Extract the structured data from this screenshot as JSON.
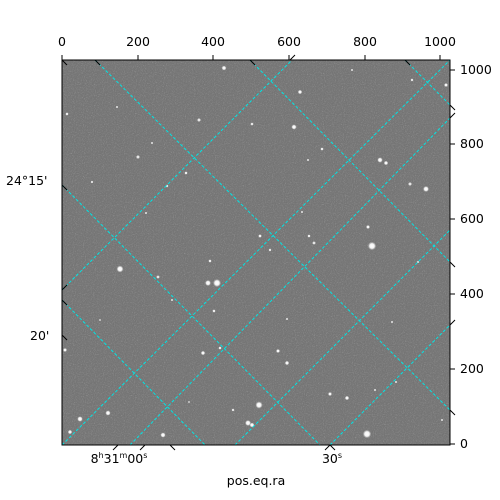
{
  "image": {
    "description_type": "astronomical-cutout",
    "background_color": "#777777",
    "star_color": "#ffffff",
    "grid_color": "#00e5e5",
    "noise": true
  },
  "axes": {
    "xlabel": "pos.eq.ra",
    "top_ticks": [
      "0",
      "200",
      "400",
      "600",
      "800",
      "1000"
    ],
    "right_ticks": [
      "0",
      "200",
      "400",
      "600",
      "800",
      "1000"
    ],
    "left_labels": {
      "dec_1": "24°15'",
      "dec_2": "20'"
    },
    "bottom_labels": {
      "ra_1_prefix": "8",
      "ra_1_h": "h",
      "ra_1_mid": "31",
      "ra_1_m": "m",
      "ra_1_suffix": "00",
      "ra_1_s": "s",
      "ra_2_prefix": "30",
      "ra_2_s": "s"
    }
  }
}
